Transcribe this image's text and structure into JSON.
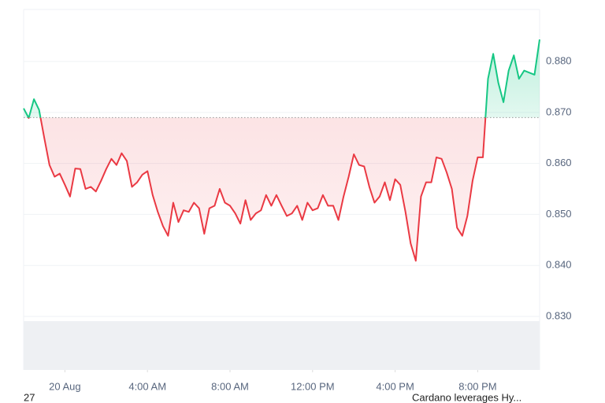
{
  "chart_data": {
    "type": "line",
    "values": [
      0.8708,
      0.8689,
      0.8726,
      0.8705,
      0.865,
      0.8597,
      0.8574,
      0.858,
      0.8558,
      0.8535,
      0.859,
      0.8589,
      0.855,
      0.8554,
      0.8545,
      0.8566,
      0.8589,
      0.8609,
      0.8597,
      0.862,
      0.8605,
      0.8554,
      0.8563,
      0.8578,
      0.8585,
      0.8538,
      0.8505,
      0.8477,
      0.8458,
      0.8523,
      0.8485,
      0.8508,
      0.8505,
      0.8523,
      0.8512,
      0.8462,
      0.8512,
      0.8517,
      0.855,
      0.8523,
      0.8517,
      0.8502,
      0.8482,
      0.8528,
      0.8489,
      0.8502,
      0.8508,
      0.8538,
      0.8517,
      0.8538,
      0.8517,
      0.8497,
      0.8502,
      0.8517,
      0.8489,
      0.8523,
      0.8508,
      0.8512,
      0.8538,
      0.8517,
      0.8517,
      0.8489,
      0.8535,
      0.8574,
      0.8618,
      0.8597,
      0.8594,
      0.8554,
      0.8523,
      0.8535,
      0.8563,
      0.8528,
      0.8569,
      0.8558,
      0.8505,
      0.8443,
      0.8409,
      0.8535,
      0.8563,
      0.8563,
      0.8612,
      0.8609,
      0.8582,
      0.855,
      0.8474,
      0.8458,
      0.8497,
      0.8566,
      0.8612,
      0.8612,
      0.8766,
      0.8815,
      0.8758,
      0.872,
      0.8782,
      0.8812,
      0.8766,
      0.8782,
      0.8778,
      0.8774,
      0.8843
    ],
    "baseline": 0.869,
    "color_up": "#16c784",
    "color_down": "#ea3943",
    "xlim": [
      0,
      100
    ],
    "xticks": [
      {
        "value": 8,
        "label": "20 Aug"
      },
      {
        "value": 24,
        "label": "4:00 AM"
      },
      {
        "value": 40,
        "label": "8:00 AM"
      },
      {
        "value": 56,
        "label": "12:00 PM"
      },
      {
        "value": 72,
        "label": "4:00 PM"
      },
      {
        "value": 88,
        "label": "8:00 PM"
      }
    ],
    "ylim": [
      0.8195,
      0.8902
    ],
    "yticks": [
      {
        "value": 0.83,
        "label": "0.830"
      },
      {
        "value": 0.84,
        "label": "0.840"
      },
      {
        "value": 0.85,
        "label": "0.850"
      },
      {
        "value": 0.86,
        "label": "0.860"
      },
      {
        "value": 0.87,
        "label": "0.870"
      },
      {
        "value": 0.88,
        "label": "0.880"
      }
    ],
    "grid": true
  },
  "footer": {
    "left": "27",
    "news": "Cardano leverages Hy..."
  }
}
